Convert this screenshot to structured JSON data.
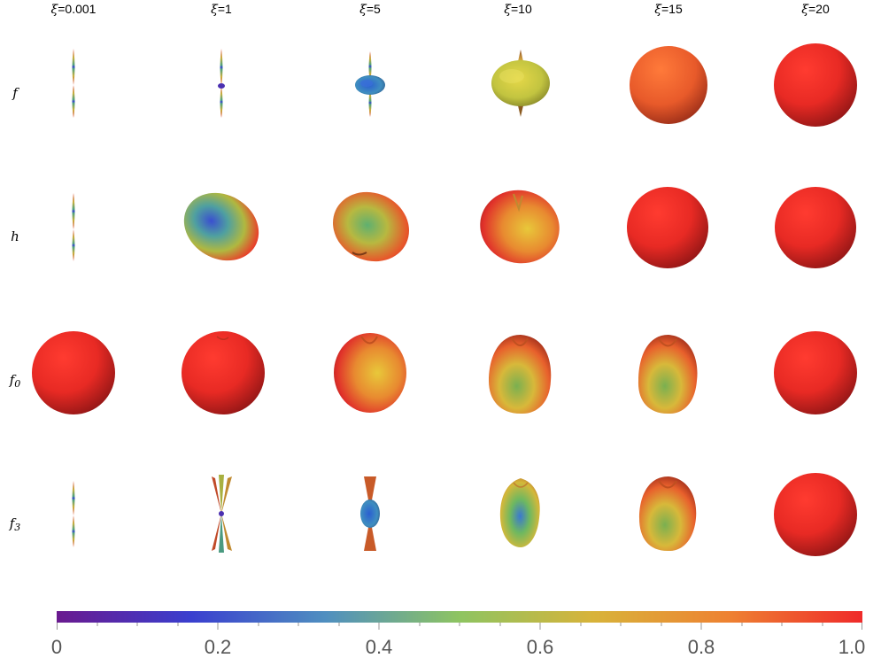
{
  "columns": [
    {
      "sym": "ξ",
      "val": "=0.001"
    },
    {
      "sym": "ξ",
      "val": "=1"
    },
    {
      "sym": "ξ",
      "val": "=5"
    },
    {
      "sym": "ξ",
      "val": "=10"
    },
    {
      "sym": "ξ",
      "val": "=15"
    },
    {
      "sym": "ξ",
      "val": "=20"
    }
  ],
  "rows": [
    {
      "base": "f",
      "sub": ""
    },
    {
      "base": "h",
      "sub": ""
    },
    {
      "base": "f",
      "sub": "0"
    },
    {
      "base": "f",
      "sub": "3"
    }
  ],
  "colorbar": {
    "ticks": [
      "0",
      "0.2",
      "0.4",
      "0.6",
      "0.8",
      "1.0"
    ],
    "stops": [
      "#6a1a8f",
      "#3a3fcf",
      "#4f8fc0",
      "#8ec461",
      "#d8b33a",
      "#ee8232",
      "#ef2a2a"
    ]
  }
}
